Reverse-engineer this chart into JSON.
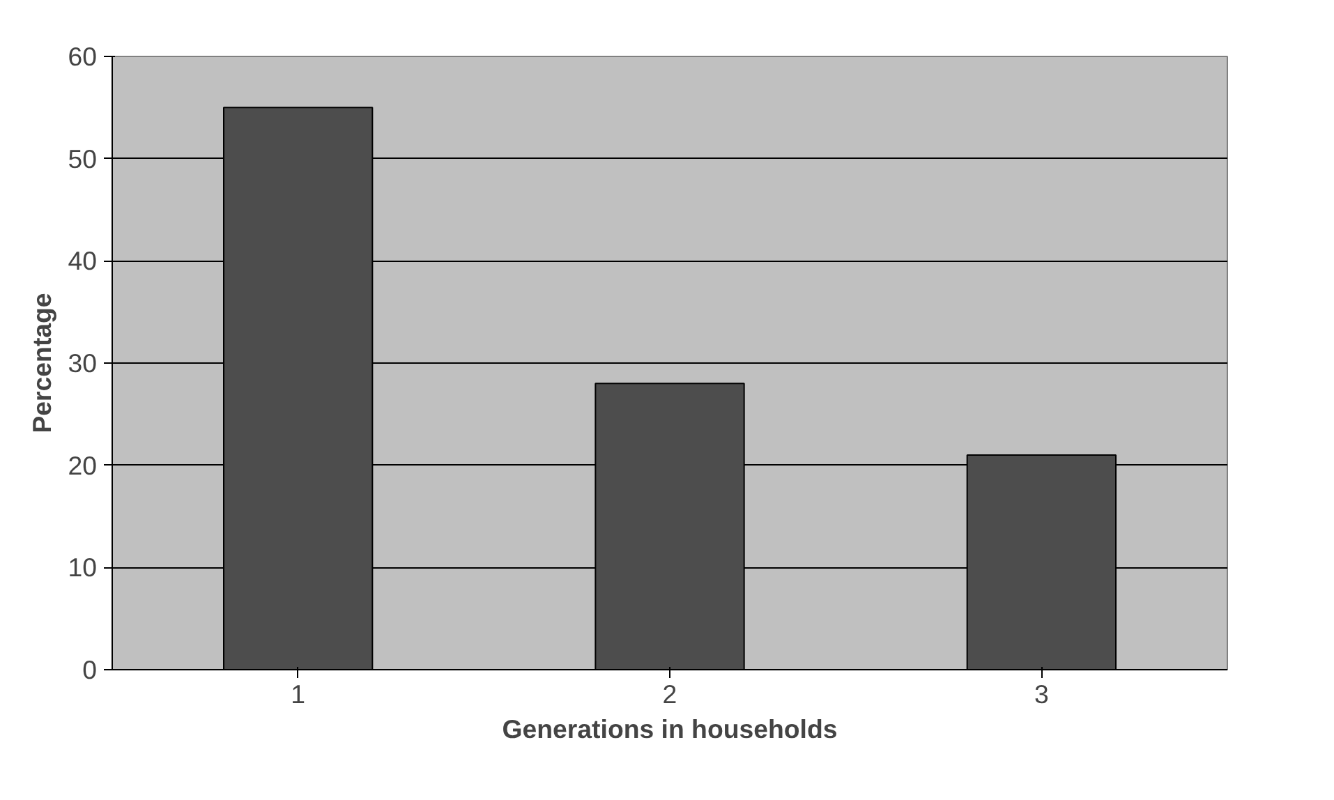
{
  "chart_data": {
    "type": "bar",
    "xlabel": "Generations in households",
    "ylabel": "Percentage",
    "categories": [
      "1",
      "2",
      "3"
    ],
    "series": [
      {
        "color": "#4d4d4d",
        "values": [
          55,
          28,
          21
        ]
      }
    ],
    "ylim": [
      0,
      60
    ],
    "yticks": [
      0,
      10,
      20,
      30,
      40,
      50,
      60
    ],
    "grid": "y"
  }
}
